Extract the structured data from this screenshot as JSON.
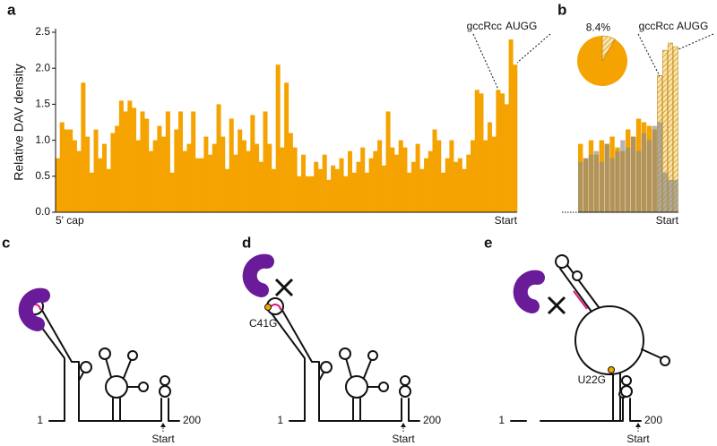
{
  "chart_data": [
    {
      "type": "bar",
      "panel": "a",
      "ylabel": "Relative DAV density",
      "color": "#f5a300",
      "x_start_label": "5' cap",
      "x_end_label": "Start",
      "annotations": [
        "gccRcc",
        "AUGG"
      ],
      "values": [
        0.75,
        1.25,
        1.15,
        1.15,
        1.0,
        0.85,
        1.8,
        1.05,
        0.55,
        1.15,
        0.75,
        0.95,
        0.6,
        1.1,
        1.2,
        1.55,
        1.4,
        1.55,
        1.45,
        1.0,
        1.4,
        1.3,
        0.85,
        1.0,
        1.2,
        1.05,
        1.4,
        0.55,
        1.15,
        1.4,
        0.85,
        0.95,
        1.4,
        0.75,
        0.75,
        1.05,
        0.8,
        0.95,
        1.5,
        1.05,
        0.6,
        1.3,
        0.8,
        1.15,
        1.0,
        0.85,
        1.35,
        0.95,
        0.7,
        1.4,
        0.95,
        0.6,
        2.05,
        0.9,
        1.8,
        1.1,
        0.9,
        0.5,
        0.8,
        0.5,
        0.5,
        0.7,
        0.6,
        0.8,
        0.45,
        0.65,
        0.6,
        0.75,
        0.5,
        0.85,
        0.55,
        0.7,
        0.9,
        0.55,
        0.75,
        0.85,
        1.0,
        0.65,
        1.4,
        0.9,
        0.8,
        1.0,
        0.9,
        0.55,
        0.7,
        0.95,
        0.6,
        0.75,
        0.85,
        1.15,
        1.0,
        0.55,
        0.75,
        1.0,
        0.7,
        0.75,
        0.6,
        0.8,
        1.0,
        1.7,
        1.65,
        1.0,
        1.25,
        1.05,
        1.7,
        1.65,
        1.5,
        2.4,
        2.05
      ],
      "ylim": [
        0,
        2.5
      ],
      "yticks": [
        {
          "value": 0,
          "label": "0.0"
        },
        0.5,
        {
          "value": 1,
          "label": "1.0"
        },
        1.5,
        {
          "value": 2,
          "label": "2.0"
        },
        2.5
      ]
    },
    {
      "type": "bar",
      "panel": "b",
      "x_end_label": "Start",
      "annotations": [
        "gccRcc",
        "AUGG"
      ],
      "ylim": [
        0,
        2.5
      ],
      "series": [
        {
          "color": "#f5a300",
          "colors": [
            "#f5a300",
            "#f5a300",
            "#f5a300",
            "#f5a300",
            "#f5a300",
            "#f5a300",
            "#f5a300",
            "#f5a300",
            "#f5a300",
            "#f5a300",
            "#f5a300",
            "#f5a300",
            "#f5a300",
            "#f5a300",
            "#f5a300",
            "#fde3a7",
            "#fde3a7",
            "#fde3a7",
            "#fde3a7"
          ],
          "values": [
            0.95,
            0.75,
            1.0,
            0.8,
            1.0,
            0.95,
            1.05,
            0.9,
            0.85,
            1.15,
            1.05,
            1.3,
            1.25,
            1.2,
            1.15,
            1.9,
            2.25,
            2.35,
            2.3
          ]
        },
        {
          "color": "#8c8c8c",
          "values": [
            0.7,
            0.75,
            0.8,
            0.85,
            0.7,
            0.95,
            0.75,
            0.85,
            1.0,
            0.9,
            1.05,
            0.85,
            1.1,
            1.0,
            1.2,
            1.25,
            0.55,
            0.45,
            0.45
          ]
        }
      ]
    },
    {
      "type": "pie",
      "values": [
        91.6,
        8.4
      ],
      "value_labels": [
        null,
        "8.4%"
      ],
      "colors": [
        "#f5a300",
        "#fde3a7"
      ]
    }
  ],
  "diagrams": [
    {
      "panel": "c",
      "five_prime": "1",
      "three_prime": "200",
      "start": "Start"
    },
    {
      "panel": "d",
      "five_prime": "1",
      "three_prime": "200",
      "start": "Start",
      "mutation": "C41G"
    },
    {
      "panel": "e",
      "five_prime": "1",
      "three_prime": "200",
      "start": "Start",
      "mutation": "U22G"
    }
  ]
}
